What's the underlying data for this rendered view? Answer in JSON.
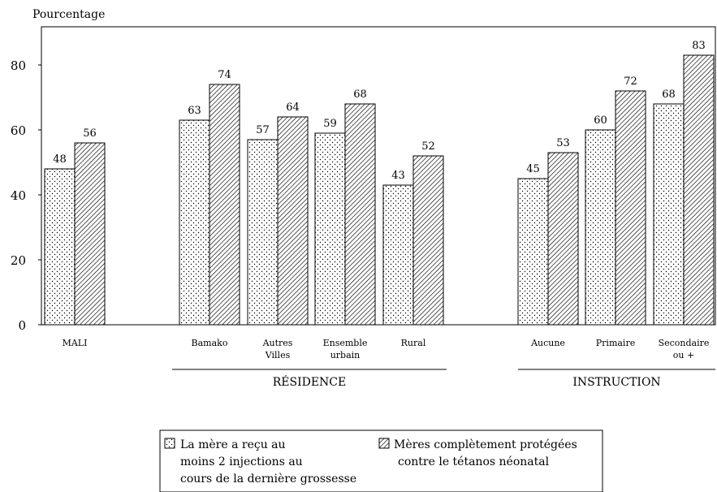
{
  "chart_data": {
    "type": "bar",
    "ylabel": "Pourcentage",
    "ylim": [
      0,
      90
    ],
    "yticks": [
      0,
      20,
      40,
      60,
      80
    ],
    "grid": false,
    "categories": [
      {
        "lines": [
          "MALI"
        ],
        "group": ""
      },
      {
        "lines": [
          "Bamako"
        ],
        "group": "RÉSIDENCE"
      },
      {
        "lines": [
          "Autres",
          "Villes"
        ],
        "group": "RÉSIDENCE"
      },
      {
        "lines": [
          "Ensemble",
          "urbain"
        ],
        "group": "RÉSIDENCE"
      },
      {
        "lines": [
          "Rural"
        ],
        "group": "RÉSIDENCE"
      },
      {
        "lines": [
          "Aucune"
        ],
        "group": "INSTRUCTION"
      },
      {
        "lines": [
          "Primaire"
        ],
        "group": "INSTRUCTION"
      },
      {
        "lines": [
          "Secondaire",
          "ou +"
        ],
        "group": "INSTRUCTION"
      }
    ],
    "groups": [
      "RÉSIDENCE",
      "INSTRUCTION"
    ],
    "series": [
      {
        "name_lines": [
          "La mère a reçu au",
          "moins 2 injections au",
          "cours de la dernière grossesse"
        ],
        "pattern": "dots",
        "values": [
          48,
          63,
          57,
          59,
          43,
          45,
          60,
          68
        ]
      },
      {
        "name_lines": [
          "Mères complètement protégées",
          "contre le tétanos néonatal"
        ],
        "pattern": "hatch",
        "values": [
          56,
          74,
          64,
          68,
          52,
          53,
          72,
          83
        ]
      }
    ],
    "legend_position": "bottom-center"
  }
}
